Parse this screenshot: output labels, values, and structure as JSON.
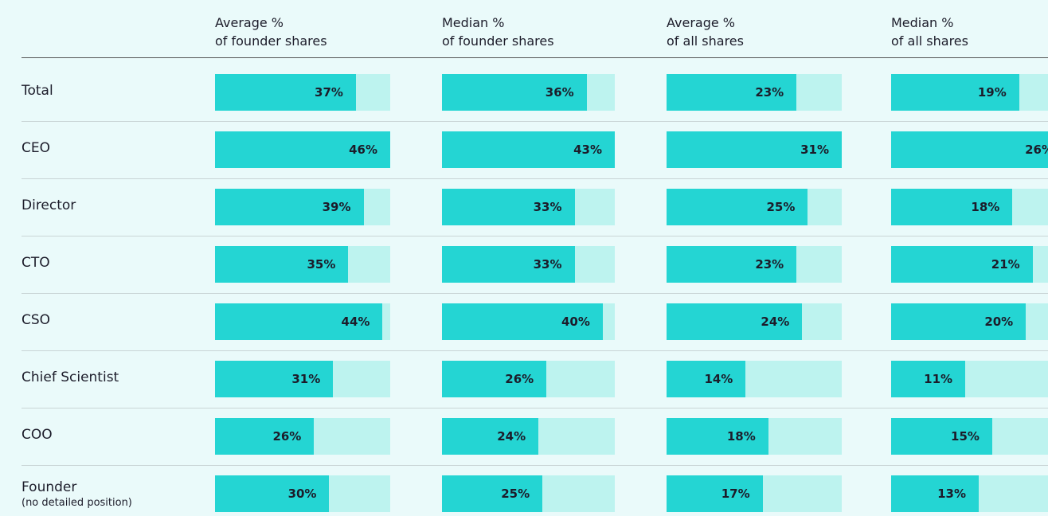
{
  "chart_data": {
    "type": "bar",
    "categories": [
      "Total",
      "CEO",
      "Director",
      "CTO",
      "CSO",
      "Chief Scientist",
      "COO",
      "Founder"
    ],
    "founder_note": "(no detailed position)",
    "series": [
      {
        "name": "Average %\nof founder shares",
        "color": "#24d5d3",
        "xlim": [
          0,
          46
        ],
        "values": [
          37,
          46,
          39,
          35,
          44,
          31,
          26,
          30
        ],
        "value_labels": [
          "37%",
          "46%",
          "39%",
          "35%",
          "44%",
          "31%",
          "26%",
          "30%"
        ]
      },
      {
        "name": "Median %\nof founder shares",
        "color": "#24d5d3",
        "xlim": [
          0,
          43
        ],
        "values": [
          36,
          43,
          33,
          33,
          40,
          26,
          24,
          25
        ],
        "value_labels": [
          "36%",
          "43%",
          "33%",
          "33%",
          "40%",
          "26%",
          "24%",
          "25%"
        ]
      },
      {
        "name": "Average %\nof all shares",
        "color": "#24d5d3",
        "xlim": [
          0,
          31
        ],
        "values": [
          23,
          31,
          25,
          23,
          24,
          14,
          18,
          17
        ],
        "value_labels": [
          "23%",
          "31%",
          "25%",
          "23%",
          "24%",
          "14%",
          "18%",
          "17%"
        ]
      },
      {
        "name": "Median %\nof all shares",
        "color": "#24d5d3",
        "xlim": [
          0,
          26
        ],
        "values": [
          19,
          26,
          18,
          21,
          20,
          11,
          15,
          13
        ],
        "value_labels": [
          "19%",
          "26%",
          "18%",
          "21%",
          "20%",
          "11%",
          "15%",
          "13%"
        ]
      }
    ]
  }
}
